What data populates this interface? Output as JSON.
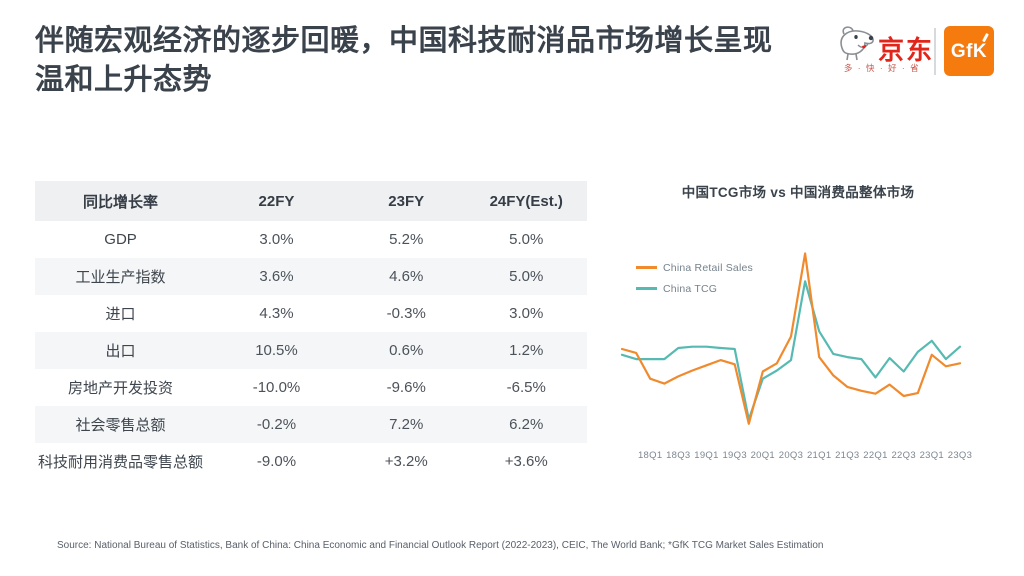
{
  "slide": {
    "title_line1": "伴随宏观经济的逐步回暖，中国科技耐消品市场增长呈现",
    "title_line2": "温和上升态势",
    "source": "Source: National Bureau of Statistics, Bank of China: China Economic and Financial Outlook Report (2022-2023), CEIC, The World Bank; *GfK TCG Market Sales Estimation"
  },
  "logos": {
    "jd_name": "京东",
    "jd_tagline": "多 · 快 · 好 · 省",
    "jd_red": "#E1251B",
    "gfk_text": "GfK",
    "gfk_orange": "#F67B0F"
  },
  "table": {
    "headers": [
      "同比增长率",
      "22FY",
      "23FY",
      "24FY(Est.)"
    ],
    "rows": [
      {
        "label": "GDP",
        "values": [
          "3.0%",
          "5.2%",
          "5.0%"
        ]
      },
      {
        "label": "工业生产指数",
        "values": [
          "3.6%",
          "4.6%",
          "5.0%"
        ]
      },
      {
        "label": "进口",
        "values": [
          "4.3%",
          "-0.3%",
          "3.0%"
        ]
      },
      {
        "label": "出口",
        "values": [
          "10.5%",
          "0.6%",
          "1.2%"
        ]
      },
      {
        "label": "房地产开发投资",
        "values": [
          "-10.0%",
          "-9.6%",
          "-6.5%"
        ]
      },
      {
        "label": "社会零售总额",
        "values": [
          "-0.2%",
          "7.2%",
          "6.2%"
        ]
      },
      {
        "label": "科技耐用消费品零售总额",
        "values": [
          "-9.0%",
          "+3.2%",
          "+3.6%"
        ]
      }
    ]
  },
  "chart_data": {
    "type": "line",
    "title": "中国TCG市场 vs 中国消费品整体市场",
    "x_tick_labels": [
      "18Q1",
      "18Q3",
      "19Q1",
      "19Q3",
      "20Q1",
      "20Q3",
      "21Q1",
      "21Q3",
      "22Q1",
      "22Q3",
      "23Q1",
      "23Q3"
    ],
    "quarters": [
      "17Q3",
      "17Q4",
      "18Q1",
      "18Q2",
      "18Q3",
      "18Q4",
      "19Q1",
      "19Q2",
      "19Q3",
      "19Q4",
      "20Q1",
      "20Q2",
      "20Q3",
      "20Q4",
      "21Q1",
      "21Q2",
      "21Q3",
      "21Q4",
      "22Q1",
      "22Q2",
      "22Q3",
      "22Q4",
      "23Q1",
      "23Q2",
      "23Q3"
    ],
    "series": [
      {
        "name": "China Retail Sales",
        "color": "#F08A2D",
        "values": [
          3.8,
          2.6,
          -5.3,
          -6.8,
          -4.6,
          -2.8,
          -1.2,
          0.4,
          -0.9,
          -19.1,
          -3.1,
          -0.6,
          7.6,
          33.0,
          1.3,
          -4.3,
          -7.8,
          -9.0,
          -9.9,
          -7.1,
          -10.6,
          -9.7,
          2.0,
          -1.5,
          -0.6
        ]
      },
      {
        "name": "China TCG",
        "color": "#57BAB2",
        "values": [
          2.0,
          0.7,
          0.7,
          0.7,
          4.1,
          4.5,
          4.5,
          4.1,
          3.8,
          -17.8,
          -5.3,
          -2.8,
          0.4,
          24.5,
          9.2,
          2.3,
          1.3,
          0.7,
          -4.9,
          1.0,
          -3.1,
          2.9,
          6.3,
          0.7,
          4.5
        ]
      }
    ],
    "ylim": [
      -21,
      35
    ],
    "grid": false,
    "legend_position": "top-left",
    "axis_label_color": "#7D8790"
  }
}
